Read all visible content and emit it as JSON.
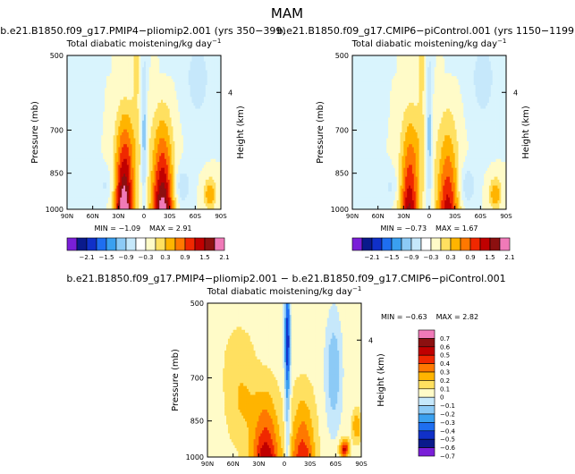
{
  "page_title": "MAM",
  "colors": {
    "palette_a": [
      "#7a1fd8",
      "#0a1a8c",
      "#1030c8",
      "#1e6ef0",
      "#3aa0f0",
      "#8ccaf6",
      "#c6e8fb",
      "#ffffff",
      "#fffbc8",
      "#ffe060",
      "#ffb400",
      "#ff7800",
      "#f02800",
      "#c00000",
      "#8c1010",
      "#f07ab8"
    ],
    "palette_diff": [
      "#7a1fd8",
      "#0a1a8c",
      "#1030c8",
      "#1e6ef0",
      "#3aa0f0",
      "#8ccaf6",
      "#c6e8fb",
      "#fffbc8",
      "#ffe060",
      "#ffb400",
      "#ff7800",
      "#f02800",
      "#c00000",
      "#8c1010",
      "#f07ab8"
    ]
  },
  "chart_data": [
    {
      "type": "heatmap",
      "title": "b.e21.B1850.f09_g17.PMIP4−pliomip2.001 (yrs 350−399)",
      "subtitle": "Total diabatic moistening/kg day",
      "subtitle_sup": "−1",
      "xlabel": "",
      "ylabel": "Pressure (mb)",
      "y2label": "Height (km)",
      "x_ticks": [
        "90N",
        "60N",
        "30N",
        "0",
        "30S",
        "60S",
        "90S"
      ],
      "y_ticks": [
        "500",
        "700",
        "850",
        "1000"
      ],
      "y2_ticks": [
        "4"
      ],
      "ylim": [
        1000,
        500
      ],
      "min_label": "MIN =",
      "min_value": "−1.09",
      "max_label": "MAX =",
      "max_value": "2.91",
      "colorbar_labels": [
        "−2.1",
        "−1.5",
        "−0.9",
        "−0.3",
        "0.3",
        "0.9",
        "1.5",
        "2.1"
      ]
    },
    {
      "type": "heatmap",
      "title": "b.e21.B1850.f09_g17.CMIP6−piControl.001 (yrs 1150−1199)",
      "subtitle": "Total diabatic moistening/kg day",
      "subtitle_sup": "−1",
      "xlabel": "",
      "ylabel": "Pressure (mb)",
      "y2label": "Height (km)",
      "x_ticks": [
        "90N",
        "60N",
        "30N",
        "0",
        "30S",
        "60S",
        "90S"
      ],
      "y_ticks": [
        "500",
        "700",
        "850",
        "1000"
      ],
      "y2_ticks": [
        "4"
      ],
      "ylim": [
        1000,
        500
      ],
      "min_label": "MIN =",
      "min_value": "−0.73",
      "max_label": "MAX =",
      "max_value": "1.67",
      "colorbar_labels": [
        "−2.1",
        "−1.5",
        "−0.9",
        "−0.3",
        "0.3",
        "0.9",
        "1.5",
        "2.1"
      ]
    },
    {
      "type": "heatmap",
      "title": "b.e21.B1850.f09_g17.PMIP4−pliomip2.001 − b.e21.B1850.f09_g17.CMIP6−piControl.001",
      "subtitle": "Total diabatic moistening/kg day",
      "subtitle_sup": "−1",
      "xlabel": "",
      "ylabel": "Pressure (mb)",
      "y2label": "Height (km)",
      "x_ticks": [
        "90N",
        "60N",
        "30N",
        "0",
        "30S",
        "60S",
        "90S"
      ],
      "y_ticks": [
        "500",
        "700",
        "850",
        "1000"
      ],
      "y2_ticks": [
        "4"
      ],
      "ylim": [
        1000,
        500
      ],
      "min_label": "MIN =",
      "min_value": "−0.63",
      "max_label": "MAX =",
      "max_value": "2.82",
      "colorbar_labels": [
        "0.7",
        "0.6",
        "0.5",
        "0.4",
        "0.3",
        "0.2",
        "0.1",
        "0",
        "−0.1",
        "−0.2",
        "−0.3",
        "−0.4",
        "−0.5",
        "−0.6",
        "−0.7"
      ]
    }
  ]
}
